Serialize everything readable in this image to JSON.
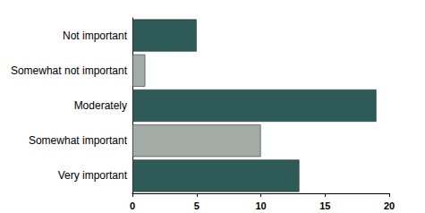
{
  "chart_data": {
    "type": "bar",
    "orientation": "horizontal",
    "categories": [
      "Not important",
      "Somewhat not important",
      "Moderately",
      "Somewhat important",
      "Very important"
    ],
    "values": [
      5,
      1,
      19,
      10,
      13
    ],
    "colors": [
      "#2e5b57",
      "#a2aba5",
      "#2e5b57",
      "#a2aba5",
      "#2e5b57"
    ],
    "xlim": [
      0,
      20
    ],
    "xticks": [
      0,
      5,
      10,
      15,
      20
    ],
    "grid": false
  }
}
